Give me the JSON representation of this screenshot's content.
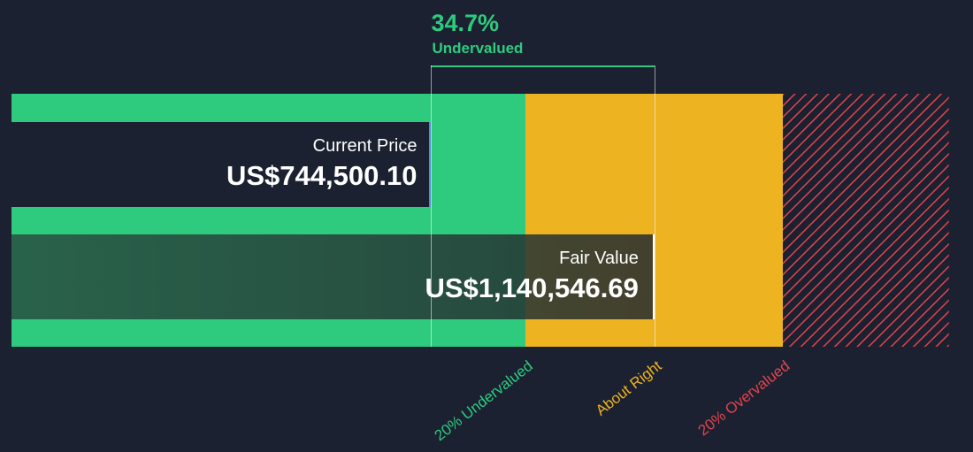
{
  "chart_data": {
    "type": "bar",
    "current_price": {
      "label": "Current Price",
      "value": 744500.1,
      "display": "US$744,500.10"
    },
    "fair_value": {
      "label": "Fair Value",
      "value": 1140546.69,
      "display": "US$1,140,546.69"
    },
    "difference": {
      "percent": "34.7%",
      "label": "Undervalued"
    },
    "zones": [
      {
        "name": "20% Undervalued",
        "color": "#2ecb7f"
      },
      {
        "name": "About Right",
        "color": "#edb321"
      },
      {
        "name": "20% Overvalued",
        "color": "#e0444d"
      }
    ],
    "axis": {
      "min": 0,
      "max": 1663300
    }
  },
  "colors": {
    "background": "#1b2130",
    "undervalued": "#2ecb7f",
    "about_right": "#edb321",
    "overvalued": "#e0444d"
  }
}
